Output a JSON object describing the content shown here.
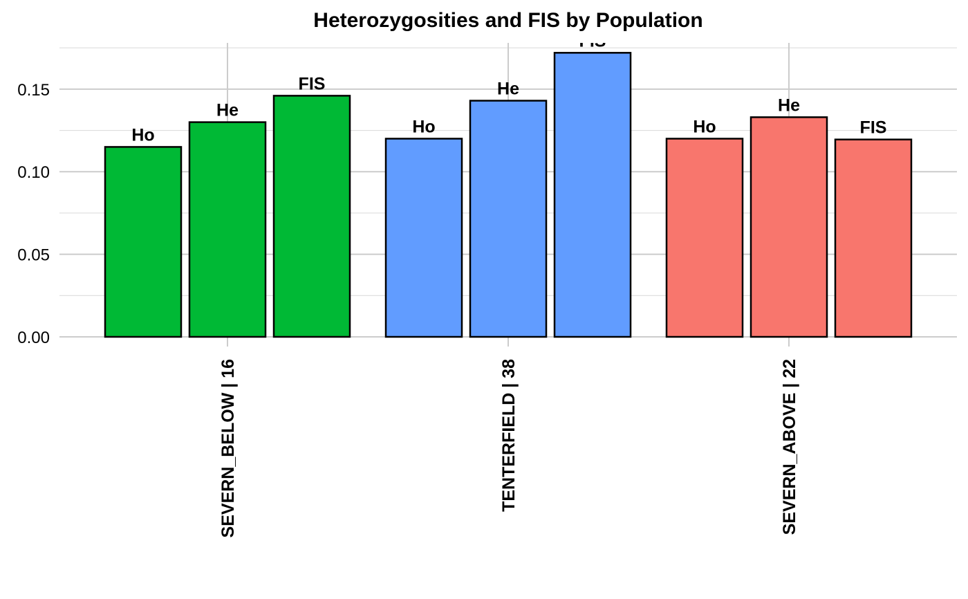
{
  "chart_data": {
    "type": "bar",
    "title": "Heterozygosities and FIS by Population",
    "xlabel": "",
    "ylabel": "",
    "ylim": [
      0,
      0.178
    ],
    "yticks": [
      "0.00",
      "0.05",
      "0.10",
      "0.15"
    ],
    "grid": true,
    "legend": "none",
    "groups": [
      {
        "label": "SEVERN_BELOW | 16",
        "color": "#00b935",
        "bars": [
          {
            "label": "Ho",
            "value": 0.115
          },
          {
            "label": "He",
            "value": 0.13
          },
          {
            "label": "FIS",
            "value": 0.146
          }
        ]
      },
      {
        "label": "TENTERFIELD | 38",
        "color": "#619cff",
        "bars": [
          {
            "label": "Ho",
            "value": 0.12
          },
          {
            "label": "He",
            "value": 0.143
          },
          {
            "label": "FIS",
            "value": 0.172
          }
        ]
      },
      {
        "label": "SEVERN_ABOVE | 22",
        "color": "#f8766d",
        "bars": [
          {
            "label": "Ho",
            "value": 0.12
          },
          {
            "label": "He",
            "value": 0.133
          },
          {
            "label": "FIS",
            "value": 0.1195
          }
        ]
      }
    ]
  }
}
